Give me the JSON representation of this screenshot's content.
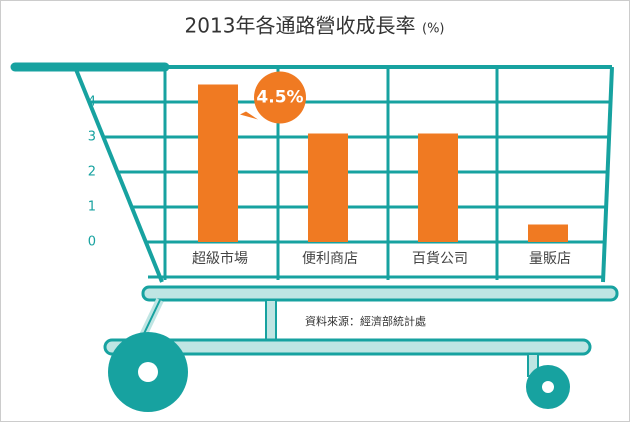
{
  "chart_data": {
    "type": "bar",
    "title": "2013年各通路營收成長率",
    "unit": "(%)",
    "categories": [
      "超級市場",
      "便利商店",
      "百貨公司",
      "量販店"
    ],
    "values": [
      4.5,
      3.1,
      3.1,
      0.5
    ],
    "value_labels": [
      "4.5%",
      null,
      null,
      null
    ],
    "color": "#f07a22",
    "ylim": [
      0,
      5
    ],
    "yticks": [
      0,
      1,
      2,
      3,
      4
    ],
    "grid": true,
    "source": "資料來源：經濟部統計處"
  }
}
